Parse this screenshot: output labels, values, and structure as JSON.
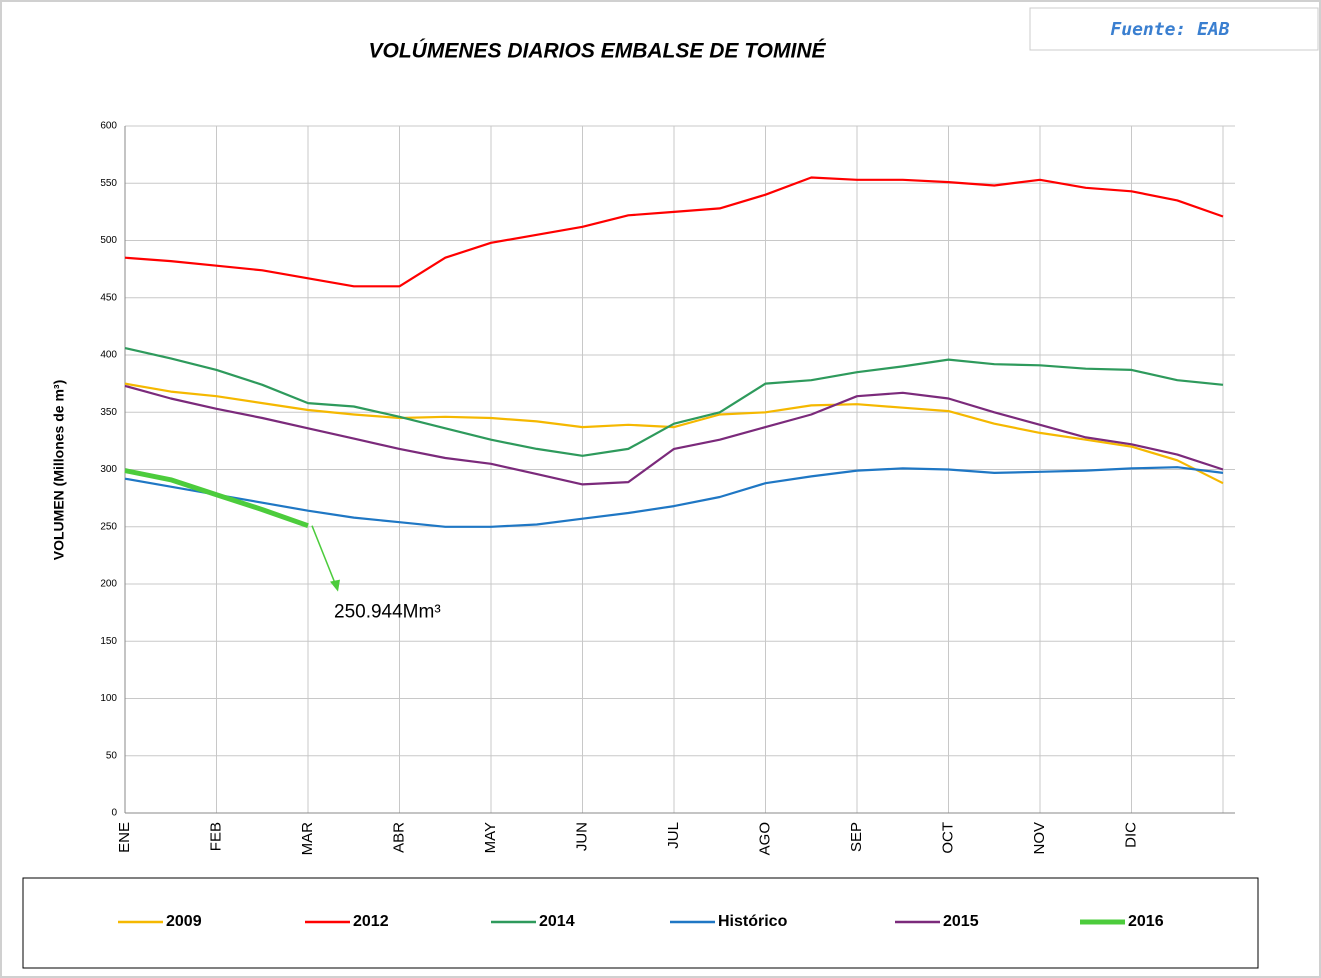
{
  "chart_data": {
    "type": "line",
    "title": "VOLÚMENES DIARIOS EMBALSE DE TOMINÉ",
    "source": "Fuente: EAB",
    "y_label": "VOLUMEN (Millones de m³)",
    "categories": [
      "ENE",
      null,
      "FEB",
      null,
      "MAR",
      null,
      "ABR",
      null,
      "MAY",
      null,
      "JUN",
      null,
      "JUL",
      null,
      "AGO",
      null,
      "SEP",
      null,
      "OCT",
      null,
      "NOV",
      null,
      "DIC",
      null,
      null
    ],
    "series": [
      {
        "name": "2009",
        "color": "#f5b800",
        "values": [
          375,
          368,
          364,
          358,
          352,
          348,
          345,
          346,
          345,
          342,
          337,
          339,
          337,
          348,
          350,
          356,
          357,
          354,
          351,
          340,
          332,
          326,
          320,
          308,
          288
        ]
      },
      {
        "name": "2012",
        "color": "#ff0000",
        "values": [
          485,
          482,
          478,
          474,
          467,
          460,
          460,
          485,
          498,
          505,
          512,
          522,
          525,
          528,
          540,
          555,
          553,
          553,
          551,
          548,
          553,
          546,
          543,
          535,
          521
        ]
      },
      {
        "name": "2014",
        "color": "#2e9a5c",
        "values": [
          406,
          397,
          387,
          374,
          358,
          355,
          346,
          336,
          326,
          318,
          312,
          318,
          340,
          350,
          375,
          378,
          385,
          390,
          396,
          392,
          391,
          388,
          387,
          378,
          374
        ]
      },
      {
        "name": "Histórico",
        "color": "#1f77c4",
        "values": [
          292,
          285,
          278,
          271,
          264,
          258,
          254,
          250,
          250,
          252,
          257,
          262,
          268,
          276,
          288,
          294,
          299,
          301,
          300,
          297,
          298,
          299,
          301,
          302,
          297
        ]
      },
      {
        "name": "2015",
        "color": "#7b2a7b",
        "values": [
          373,
          362,
          353,
          345,
          336,
          327,
          318,
          310,
          305,
          296,
          287,
          289,
          318,
          326,
          337,
          348,
          364,
          367,
          362,
          350,
          339,
          328,
          322,
          313,
          300
        ]
      },
      {
        "name": "2016",
        "color": "#4ccc3c",
        "width": 5,
        "values": [
          299,
          291,
          278,
          265,
          250.944,
          null,
          null,
          null,
          null,
          null,
          null,
          null,
          null,
          null,
          null,
          null,
          null,
          null,
          null,
          null,
          null,
          null,
          null,
          null,
          null
        ],
        "value_labels": [
          null,
          null,
          null,
          null,
          "250.944Mm³",
          null,
          null,
          null,
          null,
          null,
          null,
          null,
          null,
          null,
          null,
          null,
          null,
          null,
          null,
          null,
          null,
          null,
          null,
          null,
          null
        ]
      }
    ],
    "ylim": [
      0,
      600
    ],
    "yticks": [
      0,
      50,
      100,
      150,
      200,
      250,
      300,
      350,
      400,
      450,
      500,
      550,
      600
    ],
    "grid": true
  }
}
